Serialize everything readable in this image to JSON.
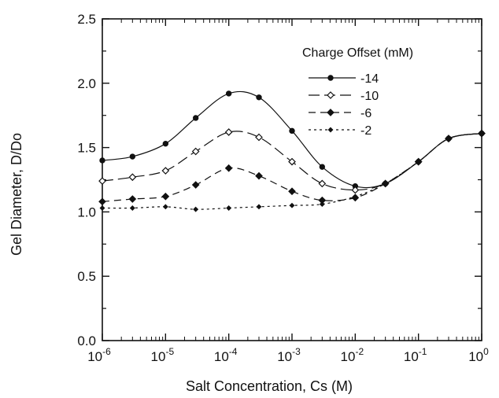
{
  "chart_data": {
    "type": "line",
    "title": "",
    "xlabel": "Salt Concentration, Cs (M)",
    "ylabel": "Gel Diameter, D/Do",
    "x_scale": "log",
    "xlim": [
      1e-06,
      1
    ],
    "ylim": [
      0,
      2.5
    ],
    "x_ticks": [
      {
        "value": 1e-06,
        "base": "10",
        "exp": "-6"
      },
      {
        "value": 1e-05,
        "base": "10",
        "exp": "-5"
      },
      {
        "value": 0.0001,
        "base": "10",
        "exp": "-4"
      },
      {
        "value": 0.001,
        "base": "10",
        "exp": "-3"
      },
      {
        "value": 0.01,
        "base": "10",
        "exp": "-2"
      },
      {
        "value": 0.1,
        "base": "10",
        "exp": "-1"
      },
      {
        "value": 1,
        "base": "10",
        "exp": "0"
      }
    ],
    "y_ticks": [
      {
        "value": 0,
        "label": "0.0"
      },
      {
        "value": 0.5,
        "label": "0.5"
      },
      {
        "value": 1,
        "label": "1.0"
      },
      {
        "value": 1.5,
        "label": "1.5"
      },
      {
        "value": 2,
        "label": "2.0"
      },
      {
        "value": 2.5,
        "label": "2.5"
      }
    ],
    "grid": false,
    "legend": {
      "title": "Charge Offset (mM)",
      "position": "top-right"
    },
    "series": [
      {
        "name": "-14",
        "line_style": "solid",
        "marker": "filled-circle",
        "x": [
          1e-06,
          3e-06,
          1e-05,
          3e-05,
          0.0001,
          0.0003,
          0.001,
          0.003,
          0.01,
          0.03,
          0.1,
          0.3,
          1
        ],
        "y": [
          1.4,
          1.43,
          1.53,
          1.73,
          1.92,
          1.89,
          1.63,
          1.35,
          1.2,
          1.22,
          1.39,
          1.57,
          1.61
        ]
      },
      {
        "name": "-10",
        "line_style": "long-dash",
        "marker": "open-diamond",
        "x": [
          1e-06,
          3e-06,
          1e-05,
          3e-05,
          0.0001,
          0.0003,
          0.001,
          0.003,
          0.01,
          0.03,
          0.1,
          0.3,
          1
        ],
        "y": [
          1.24,
          1.27,
          1.32,
          1.47,
          1.62,
          1.58,
          1.39,
          1.22,
          1.17,
          1.22,
          1.39,
          1.57,
          1.61
        ]
      },
      {
        "name": "-6",
        "line_style": "dash",
        "marker": "filled-diamond",
        "x": [
          1e-06,
          3e-06,
          1e-05,
          3e-05,
          0.0001,
          0.0003,
          0.001,
          0.003,
          0.01,
          0.03,
          0.1,
          0.3,
          1
        ],
        "y": [
          1.08,
          1.1,
          1.12,
          1.21,
          1.34,
          1.28,
          1.16,
          1.09,
          1.11,
          1.22,
          1.39,
          1.57,
          1.61
        ]
      },
      {
        "name": "-2",
        "line_style": "short-dash",
        "marker": "small-filled-diamond",
        "x": [
          1e-06,
          3e-06,
          1e-05,
          3e-05,
          0.0001,
          0.0003,
          0.001,
          0.003,
          0.01,
          0.03,
          0.1,
          0.3,
          1
        ],
        "y": [
          1.03,
          1.03,
          1.04,
          1.02,
          1.03,
          1.04,
          1.05,
          1.06,
          1.12,
          1.22,
          1.39,
          1.57,
          1.61
        ]
      }
    ],
    "colors": {
      "ink": "#111111",
      "background": "#ffffff"
    }
  }
}
